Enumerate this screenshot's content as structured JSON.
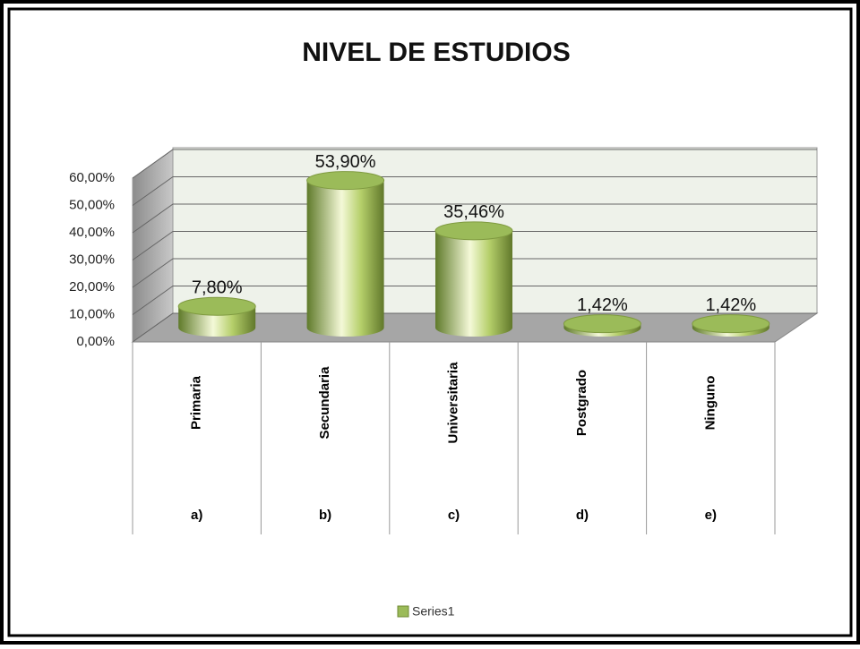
{
  "chart_data": {
    "type": "bar3d",
    "title": "NIVEL DE ESTUDIOS",
    "categories": [
      "Primaria",
      "Secundaria",
      "Universitaria",
      "Postgrado",
      "Ninguno"
    ],
    "category_codes": [
      "a)",
      "b)",
      "c)",
      "d)",
      "e)"
    ],
    "series": [
      {
        "name": "Series1",
        "color": "#9bbb59",
        "values": [
          7.8,
          53.9,
          35.46,
          1.42,
          1.42
        ],
        "value_labels": [
          "7,80%",
          "53,90%",
          "35,46%",
          "1,42%",
          "1,42%"
        ]
      }
    ],
    "ylim": [
      0,
      60
    ],
    "yticks": [
      {
        "value": 0,
        "label": "0,00%"
      },
      {
        "value": 10,
        "label": "10,00%"
      },
      {
        "value": 20,
        "label": "20,00%"
      },
      {
        "value": 30,
        "label": "30,00%"
      },
      {
        "value": 40,
        "label": "40,00%"
      },
      {
        "value": 50,
        "label": "50,00%"
      },
      {
        "value": 60,
        "label": "60,00%"
      }
    ],
    "grid": true,
    "legend": "bottom"
  }
}
